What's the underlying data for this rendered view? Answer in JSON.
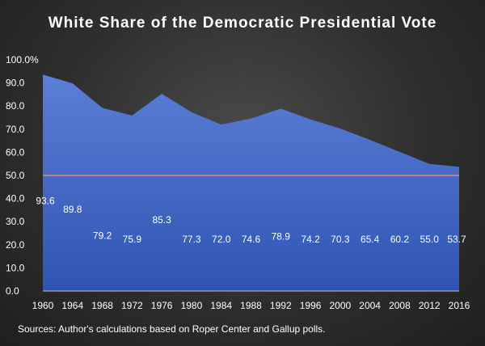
{
  "chart_data": {
    "type": "area",
    "title": "White Share of the Democratic Presidential Vote",
    "categories": [
      "1960",
      "1964",
      "1968",
      "1972",
      "1976",
      "1980",
      "1984",
      "1988",
      "1992",
      "1996",
      "2000",
      "2004",
      "2008",
      "2012",
      "2016"
    ],
    "series": [
      {
        "values": [
          93.6,
          89.8,
          79.2,
          75.9,
          85.3,
          77.3,
          72.0,
          74.6,
          78.9,
          74.2,
          70.3,
          65.4,
          60.2,
          55.0,
          53.7
        ]
      }
    ],
    "data_labels": [
      "93.6",
      "89.8",
      "79.2",
      "75.9",
      "85.3",
      "77.3",
      "72.0",
      "74.6",
      "78.9",
      "74.2",
      "70.3",
      "65.4",
      "60.2",
      "55.0",
      "53.7"
    ],
    "reference_line": 50,
    "ylim": [
      0,
      100
    ],
    "y_ticks": [
      "0.0",
      "10.0",
      "20.0",
      "30.0",
      "40.0",
      "50.0",
      "60.0",
      "70.0",
      "80.0",
      "90.0",
      "100.0%"
    ],
    "grid": false,
    "colors": {
      "area_top": "#5b7fd6",
      "area_bottom": "#2f54b3",
      "reference_line": "#e08a6a",
      "background": "#2e2e2e"
    },
    "source": "Sources: Author's calculations based on Roper Center and Gallup polls."
  }
}
